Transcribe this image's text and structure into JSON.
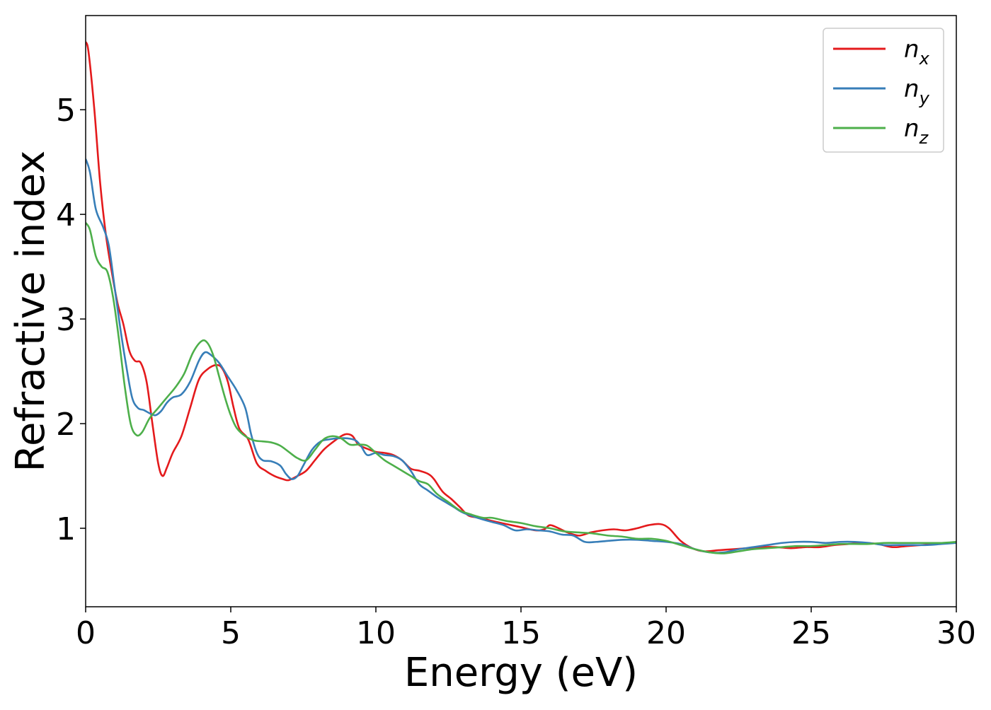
{
  "chart_data": {
    "type": "line",
    "title": "",
    "xlabel": "Energy (eV)",
    "ylabel": "Refractive index",
    "xlim": [
      0,
      30
    ],
    "ylim": [
      0.25,
      5.9
    ],
    "xticks": [
      0,
      5,
      10,
      15,
      20,
      25,
      30
    ],
    "yticks": [
      1,
      2,
      3,
      4,
      5
    ],
    "grid": false,
    "legend_position": "top-right",
    "series": [
      {
        "name": "n_x",
        "label_base": "n",
        "label_sub": "x",
        "color": "#e41a1c",
        "points": [
          [
            0,
            5.65
          ],
          [
            0.1,
            5.55
          ],
          [
            0.3,
            5.0
          ],
          [
            0.5,
            4.3
          ],
          [
            0.7,
            3.8
          ],
          [
            0.9,
            3.45
          ],
          [
            1.1,
            3.15
          ],
          [
            1.3,
            2.95
          ],
          [
            1.5,
            2.7
          ],
          [
            1.7,
            2.6
          ],
          [
            1.9,
            2.58
          ],
          [
            2.1,
            2.4
          ],
          [
            2.3,
            2.0
          ],
          [
            2.5,
            1.62
          ],
          [
            2.65,
            1.5
          ],
          [
            2.8,
            1.58
          ],
          [
            3.0,
            1.72
          ],
          [
            3.3,
            1.88
          ],
          [
            3.6,
            2.15
          ],
          [
            3.9,
            2.42
          ],
          [
            4.2,
            2.52
          ],
          [
            4.5,
            2.56
          ],
          [
            4.7,
            2.53
          ],
          [
            4.9,
            2.4
          ],
          [
            5.1,
            2.15
          ],
          [
            5.3,
            1.95
          ],
          [
            5.6,
            1.85
          ],
          [
            5.9,
            1.62
          ],
          [
            6.2,
            1.55
          ],
          [
            6.5,
            1.5
          ],
          [
            6.8,
            1.47
          ],
          [
            7.0,
            1.46
          ],
          [
            7.3,
            1.5
          ],
          [
            7.6,
            1.55
          ],
          [
            7.9,
            1.65
          ],
          [
            8.2,
            1.75
          ],
          [
            8.5,
            1.82
          ],
          [
            8.8,
            1.88
          ],
          [
            9.0,
            1.9
          ],
          [
            9.2,
            1.88
          ],
          [
            9.4,
            1.8
          ],
          [
            9.7,
            1.76
          ],
          [
            10.0,
            1.73
          ],
          [
            10.3,
            1.72
          ],
          [
            10.6,
            1.7
          ],
          [
            10.9,
            1.65
          ],
          [
            11.2,
            1.57
          ],
          [
            11.5,
            1.55
          ],
          [
            11.8,
            1.52
          ],
          [
            12.0,
            1.47
          ],
          [
            12.3,
            1.35
          ],
          [
            12.6,
            1.28
          ],
          [
            12.9,
            1.2
          ],
          [
            13.2,
            1.12
          ],
          [
            13.6,
            1.1
          ],
          [
            14.0,
            1.07
          ],
          [
            14.5,
            1.04
          ],
          [
            15.0,
            1.01
          ],
          [
            15.5,
            0.98
          ],
          [
            15.8,
            0.99
          ],
          [
            16.0,
            1.03
          ],
          [
            16.3,
            1.0
          ],
          [
            16.6,
            0.96
          ],
          [
            17.0,
            0.93
          ],
          [
            17.4,
            0.96
          ],
          [
            17.8,
            0.98
          ],
          [
            18.2,
            0.99
          ],
          [
            18.6,
            0.98
          ],
          [
            19.0,
            1.0
          ],
          [
            19.4,
            1.03
          ],
          [
            19.8,
            1.04
          ],
          [
            20.1,
            1.0
          ],
          [
            20.5,
            0.88
          ],
          [
            20.9,
            0.81
          ],
          [
            21.3,
            0.78
          ],
          [
            21.8,
            0.79
          ],
          [
            22.3,
            0.8
          ],
          [
            22.8,
            0.81
          ],
          [
            23.3,
            0.82
          ],
          [
            23.8,
            0.82
          ],
          [
            24.3,
            0.81
          ],
          [
            24.8,
            0.82
          ],
          [
            25.3,
            0.82
          ],
          [
            25.8,
            0.84
          ],
          [
            26.3,
            0.85
          ],
          [
            26.8,
            0.86
          ],
          [
            27.3,
            0.85
          ],
          [
            27.8,
            0.82
          ],
          [
            28.3,
            0.83
          ],
          [
            28.8,
            0.84
          ],
          [
            29.3,
            0.85
          ],
          [
            30.0,
            0.87
          ]
        ]
      },
      {
        "name": "n_y",
        "label_base": "n",
        "label_sub": "y",
        "color": "#377eb8",
        "points": [
          [
            0,
            4.53
          ],
          [
            0.15,
            4.4
          ],
          [
            0.35,
            4.05
          ],
          [
            0.6,
            3.88
          ],
          [
            0.8,
            3.7
          ],
          [
            1.0,
            3.3
          ],
          [
            1.2,
            2.9
          ],
          [
            1.4,
            2.55
          ],
          [
            1.6,
            2.25
          ],
          [
            1.8,
            2.15
          ],
          [
            2.0,
            2.13
          ],
          [
            2.2,
            2.1
          ],
          [
            2.4,
            2.08
          ],
          [
            2.6,
            2.12
          ],
          [
            2.8,
            2.2
          ],
          [
            3.0,
            2.25
          ],
          [
            3.3,
            2.28
          ],
          [
            3.6,
            2.4
          ],
          [
            3.9,
            2.6
          ],
          [
            4.1,
            2.68
          ],
          [
            4.3,
            2.66
          ],
          [
            4.6,
            2.58
          ],
          [
            4.9,
            2.45
          ],
          [
            5.2,
            2.32
          ],
          [
            5.5,
            2.15
          ],
          [
            5.7,
            1.9
          ],
          [
            5.9,
            1.72
          ],
          [
            6.1,
            1.65
          ],
          [
            6.4,
            1.64
          ],
          [
            6.7,
            1.6
          ],
          [
            6.9,
            1.52
          ],
          [
            7.1,
            1.47
          ],
          [
            7.3,
            1.5
          ],
          [
            7.5,
            1.6
          ],
          [
            7.8,
            1.75
          ],
          [
            8.1,
            1.83
          ],
          [
            8.4,
            1.85
          ],
          [
            8.7,
            1.86
          ],
          [
            9.0,
            1.86
          ],
          [
            9.3,
            1.84
          ],
          [
            9.5,
            1.78
          ],
          [
            9.7,
            1.7
          ],
          [
            10.0,
            1.72
          ],
          [
            10.3,
            1.7
          ],
          [
            10.6,
            1.69
          ],
          [
            10.9,
            1.65
          ],
          [
            11.2,
            1.55
          ],
          [
            11.5,
            1.42
          ],
          [
            11.8,
            1.36
          ],
          [
            12.1,
            1.3
          ],
          [
            12.4,
            1.25
          ],
          [
            12.7,
            1.2
          ],
          [
            13.0,
            1.15
          ],
          [
            13.5,
            1.1
          ],
          [
            14.0,
            1.06
          ],
          [
            14.4,
            1.03
          ],
          [
            14.8,
            0.98
          ],
          [
            15.2,
            0.99
          ],
          [
            15.6,
            0.98
          ],
          [
            16.0,
            0.97
          ],
          [
            16.4,
            0.94
          ],
          [
            16.8,
            0.93
          ],
          [
            17.2,
            0.87
          ],
          [
            17.6,
            0.87
          ],
          [
            18.0,
            0.88
          ],
          [
            18.5,
            0.89
          ],
          [
            19.0,
            0.89
          ],
          [
            19.5,
            0.88
          ],
          [
            20.0,
            0.87
          ],
          [
            20.5,
            0.85
          ],
          [
            21.0,
            0.8
          ],
          [
            21.5,
            0.77
          ],
          [
            22.0,
            0.77
          ],
          [
            22.5,
            0.8
          ],
          [
            23.0,
            0.82
          ],
          [
            23.5,
            0.84
          ],
          [
            24.0,
            0.86
          ],
          [
            24.5,
            0.87
          ],
          [
            25.0,
            0.87
          ],
          [
            25.5,
            0.86
          ],
          [
            26.0,
            0.87
          ],
          [
            26.5,
            0.87
          ],
          [
            27.0,
            0.86
          ],
          [
            27.5,
            0.84
          ],
          [
            28.0,
            0.84
          ],
          [
            28.5,
            0.84
          ],
          [
            29.0,
            0.84
          ],
          [
            29.5,
            0.85
          ],
          [
            30.0,
            0.86
          ]
        ]
      },
      {
        "name": "n_z",
        "label_base": "n",
        "label_sub": "z",
        "color": "#4daf4a",
        "points": [
          [
            0,
            3.92
          ],
          [
            0.15,
            3.85
          ],
          [
            0.35,
            3.6
          ],
          [
            0.55,
            3.5
          ],
          [
            0.75,
            3.45
          ],
          [
            0.95,
            3.2
          ],
          [
            1.15,
            2.8
          ],
          [
            1.35,
            2.35
          ],
          [
            1.55,
            2.0
          ],
          [
            1.75,
            1.89
          ],
          [
            1.95,
            1.92
          ],
          [
            2.2,
            2.05
          ],
          [
            2.5,
            2.15
          ],
          [
            2.8,
            2.25
          ],
          [
            3.1,
            2.35
          ],
          [
            3.4,
            2.48
          ],
          [
            3.7,
            2.68
          ],
          [
            4.0,
            2.79
          ],
          [
            4.2,
            2.77
          ],
          [
            4.4,
            2.65
          ],
          [
            4.6,
            2.45
          ],
          [
            4.8,
            2.25
          ],
          [
            5.0,
            2.08
          ],
          [
            5.2,
            1.96
          ],
          [
            5.5,
            1.88
          ],
          [
            5.8,
            1.84
          ],
          [
            6.1,
            1.83
          ],
          [
            6.4,
            1.82
          ],
          [
            6.7,
            1.79
          ],
          [
            7.0,
            1.73
          ],
          [
            7.3,
            1.67
          ],
          [
            7.6,
            1.65
          ],
          [
            7.9,
            1.75
          ],
          [
            8.2,
            1.85
          ],
          [
            8.5,
            1.88
          ],
          [
            8.8,
            1.86
          ],
          [
            9.1,
            1.8
          ],
          [
            9.4,
            1.8
          ],
          [
            9.7,
            1.79
          ],
          [
            10.0,
            1.72
          ],
          [
            10.3,
            1.65
          ],
          [
            10.6,
            1.6
          ],
          [
            10.9,
            1.55
          ],
          [
            11.2,
            1.5
          ],
          [
            11.5,
            1.45
          ],
          [
            11.8,
            1.42
          ],
          [
            12.1,
            1.33
          ],
          [
            12.5,
            1.25
          ],
          [
            12.9,
            1.17
          ],
          [
            13.3,
            1.13
          ],
          [
            13.7,
            1.1
          ],
          [
            14.0,
            1.1
          ],
          [
            14.5,
            1.07
          ],
          [
            15.0,
            1.05
          ],
          [
            15.5,
            1.02
          ],
          [
            16.0,
            1.0
          ],
          [
            16.5,
            0.97
          ],
          [
            17.0,
            0.96
          ],
          [
            17.5,
            0.95
          ],
          [
            18.0,
            0.93
          ],
          [
            18.5,
            0.92
          ],
          [
            19.0,
            0.9
          ],
          [
            19.5,
            0.9
          ],
          [
            20.0,
            0.88
          ],
          [
            20.5,
            0.84
          ],
          [
            21.0,
            0.8
          ],
          [
            21.5,
            0.77
          ],
          [
            22.0,
            0.76
          ],
          [
            22.5,
            0.78
          ],
          [
            23.0,
            0.8
          ],
          [
            23.5,
            0.81
          ],
          [
            24.0,
            0.82
          ],
          [
            24.5,
            0.83
          ],
          [
            25.0,
            0.83
          ],
          [
            25.5,
            0.84
          ],
          [
            26.0,
            0.85
          ],
          [
            26.5,
            0.85
          ],
          [
            27.0,
            0.85
          ],
          [
            27.5,
            0.86
          ],
          [
            28.0,
            0.86
          ],
          [
            28.5,
            0.86
          ],
          [
            29.0,
            0.86
          ],
          [
            29.5,
            0.86
          ],
          [
            30.0,
            0.87
          ]
        ]
      }
    ]
  }
}
